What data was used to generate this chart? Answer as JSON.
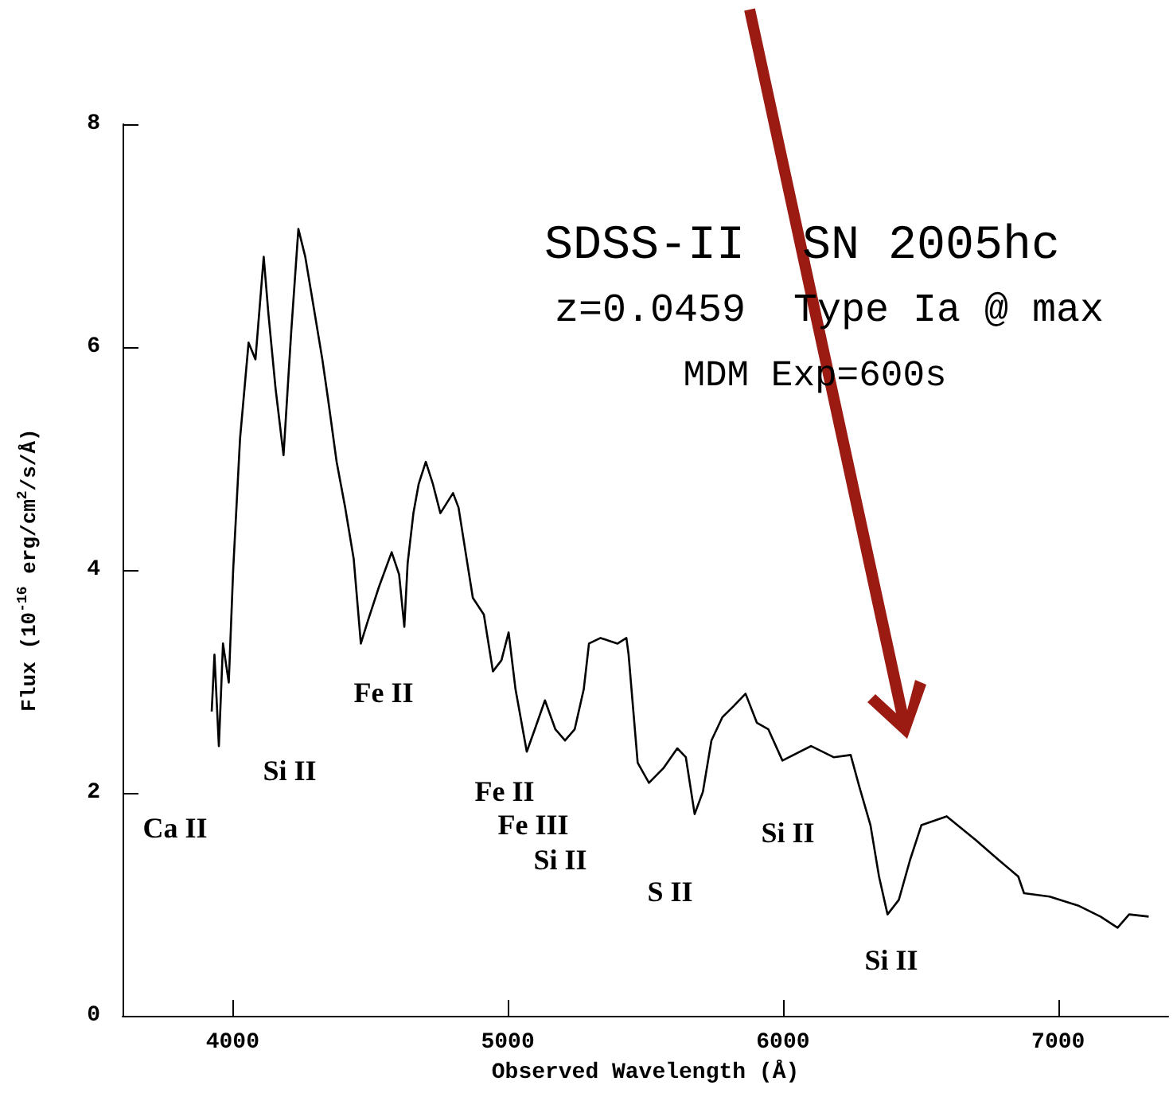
{
  "chart_data": {
    "type": "line",
    "xlabel": "Observed Wavelength (Å)",
    "ylabel": "Flux (10$^{-16}$ erg/cm$^{2}$/s/Å)",
    "xlim": [
      3600,
      7400
    ],
    "xticks": [
      4000,
      5000,
      6000,
      7000
    ],
    "ylim": [
      0,
      8
    ],
    "yticks": [
      0,
      2,
      4,
      6,
      8
    ],
    "grid": false,
    "marker": "none",
    "line_style": "solid",
    "series": [
      {
        "color": "#000000",
        "x": [
          3924,
          3934,
          3950,
          3965,
          3986,
          4002,
          4027,
          4058,
          4083,
          4113,
          4130,
          4156,
          4185,
          4213,
          4239,
          4264,
          4285,
          4326,
          4347,
          4378,
          4409,
          4440,
          4466,
          4491,
          4532,
          4578,
          4605,
          4624,
          4636,
          4657,
          4676,
          4702,
          4728,
          4755,
          4801,
          4821,
          4853,
          4873,
          4913,
          4946,
          4977,
          5003,
          5028,
          5069,
          5098,
          5135,
          5173,
          5208,
          5243,
          5276,
          5295,
          5337,
          5399,
          5431,
          5439,
          5472,
          5513,
          5565,
          5616,
          5647,
          5679,
          5709,
          5740,
          5780,
          5821,
          5864,
          5905,
          5947,
          5998,
          6102,
          6184,
          6246,
          6277,
          6318,
          6349,
          6380,
          6421,
          6462,
          6503,
          6595,
          6699,
          6783,
          6855,
          6876,
          6969,
          7072,
          7154,
          7216,
          7258,
          7329
        ],
        "values": [
          2.73,
          3.24,
          2.42,
          3.34,
          2.99,
          4.0,
          5.18,
          6.04,
          5.89,
          6.81,
          6.3,
          5.63,
          5.03,
          6.14,
          7.06,
          6.81,
          6.5,
          5.89,
          5.53,
          4.97,
          4.56,
          4.1,
          3.34,
          3.54,
          3.85,
          4.16,
          3.96,
          3.49,
          4.06,
          4.51,
          4.77,
          4.97,
          4.77,
          4.51,
          4.69,
          4.56,
          4.06,
          3.75,
          3.6,
          3.09,
          3.19,
          3.44,
          2.93,
          2.37,
          2.57,
          2.83,
          2.57,
          2.47,
          2.57,
          2.93,
          3.34,
          3.39,
          3.34,
          3.39,
          3.24,
          2.27,
          2.09,
          2.22,
          2.4,
          2.32,
          1.81,
          2.01,
          2.47,
          2.68,
          2.78,
          2.89,
          2.63,
          2.57,
          2.29,
          2.42,
          2.32,
          2.34,
          2.06,
          1.71,
          1.25,
          0.91,
          1.04,
          1.4,
          1.71,
          1.79,
          1.58,
          1.4,
          1.25,
          1.1,
          1.07,
          0.99,
          0.89,
          0.79,
          0.91,
          0.89
        ]
      }
    ],
    "annotations": [
      "SDSS-II  SN 2005hc",
      "z=0.0459  Type Ia @ max",
      "MDM Exp=600s",
      "Ca II",
      "Si II",
      "Fe II",
      "Fe II",
      "Fe III",
      "Si II",
      "S II",
      "Si II",
      "Si II"
    ]
  }
}
